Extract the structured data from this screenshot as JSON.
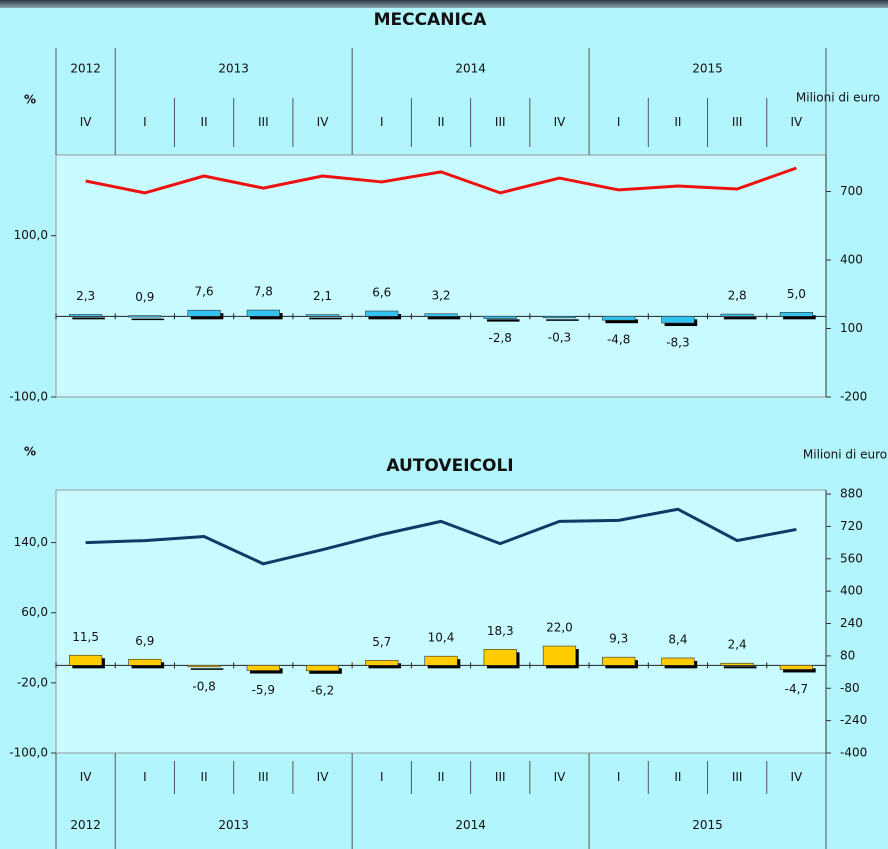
{
  "chart_data": [
    {
      "type": "bar",
      "title": "MECCANICA",
      "y_label": "%",
      "y2_label": "Milioni di euro",
      "axis_position": "top",
      "categories": [
        "IV",
        "I",
        "II",
        "III",
        "IV",
        "I",
        "II",
        "III",
        "IV",
        "I",
        "II",
        "III",
        "IV"
      ],
      "years": [
        "2012",
        "2013",
        "2013",
        "2013",
        "2013",
        "2014",
        "2014",
        "2014",
        "2014",
        "2015",
        "2015",
        "2015",
        "2015"
      ],
      "ylim": [
        -100,
        200
      ],
      "yticks": [
        {
          "value": -100,
          "label": "-100,0"
        },
        {
          "value": 100,
          "label": "100,0"
        }
      ],
      "y2lim": [
        -200,
        860
      ],
      "y2ticks": [
        -200,
        100,
        400,
        700
      ],
      "series": [
        {
          "type": "bar",
          "color": "#33c3f0",
          "values": [
            2.3,
            0.9,
            7.6,
            7.8,
            2.1,
            6.6,
            3.2,
            -2.8,
            -0.3,
            -4.8,
            -8.3,
            2.8,
            5.0
          ],
          "value_labels": [
            "2,3",
            "0,9",
            "7,6",
            "7,8",
            "2,1",
            "6,6",
            "3,2",
            "-2,8",
            "-0,3",
            "-4,8",
            "-8,3",
            "2,8",
            "5,0"
          ]
        },
        {
          "type": "line",
          "axis": "y2",
          "color": "#ee1111",
          "values": [
            746,
            694,
            768,
            715,
            768,
            742,
            786,
            694,
            759,
            707,
            724,
            711,
            803
          ]
        }
      ]
    },
    {
      "type": "bar",
      "title": "AUTOVEICOLI",
      "y_label": "%",
      "y2_label": "Milioni di euro",
      "axis_position": "bottom",
      "categories": [
        "IV",
        "I",
        "II",
        "III",
        "IV",
        "I",
        "II",
        "III",
        "IV",
        "I",
        "II",
        "III",
        "IV"
      ],
      "years": [
        "2012",
        "2013",
        "2013",
        "2013",
        "2013",
        "2014",
        "2014",
        "2014",
        "2014",
        "2015",
        "2015",
        "2015",
        "2015"
      ],
      "ylim": [
        -100,
        200
      ],
      "yticks": [
        {
          "value": -100,
          "label": "-100,0"
        },
        {
          "value": -20,
          "label": "-20,0"
        },
        {
          "value": 60,
          "label": "60,0"
        },
        {
          "value": 140,
          "label": "140,0"
        }
      ],
      "y2lim": [
        -400,
        900
      ],
      "y2ticks": [
        -400,
        -240,
        -80,
        80,
        240,
        400,
        560,
        720,
        880
      ],
      "series": [
        {
          "type": "bar",
          "color": "#ffcc00",
          "values": [
            11.5,
            6.9,
            -0.8,
            -5.9,
            -6.2,
            5.7,
            10.4,
            18.3,
            22.0,
            9.3,
            8.4,
            2.4,
            -4.7
          ],
          "value_labels": [
            "11,5",
            "6,9",
            "-0,8",
            "-5,9",
            "-6,2",
            "5,7",
            "10,4",
            "18,3",
            "22,0",
            "9,3",
            "8,4",
            "2,4",
            "-4,7"
          ]
        },
        {
          "type": "line",
          "axis": "y2",
          "color": "#0d3a66",
          "values": [
            640,
            650,
            670,
            535,
            605,
            680,
            745,
            635,
            745,
            750,
            805,
            650,
            705
          ]
        }
      ]
    }
  ]
}
